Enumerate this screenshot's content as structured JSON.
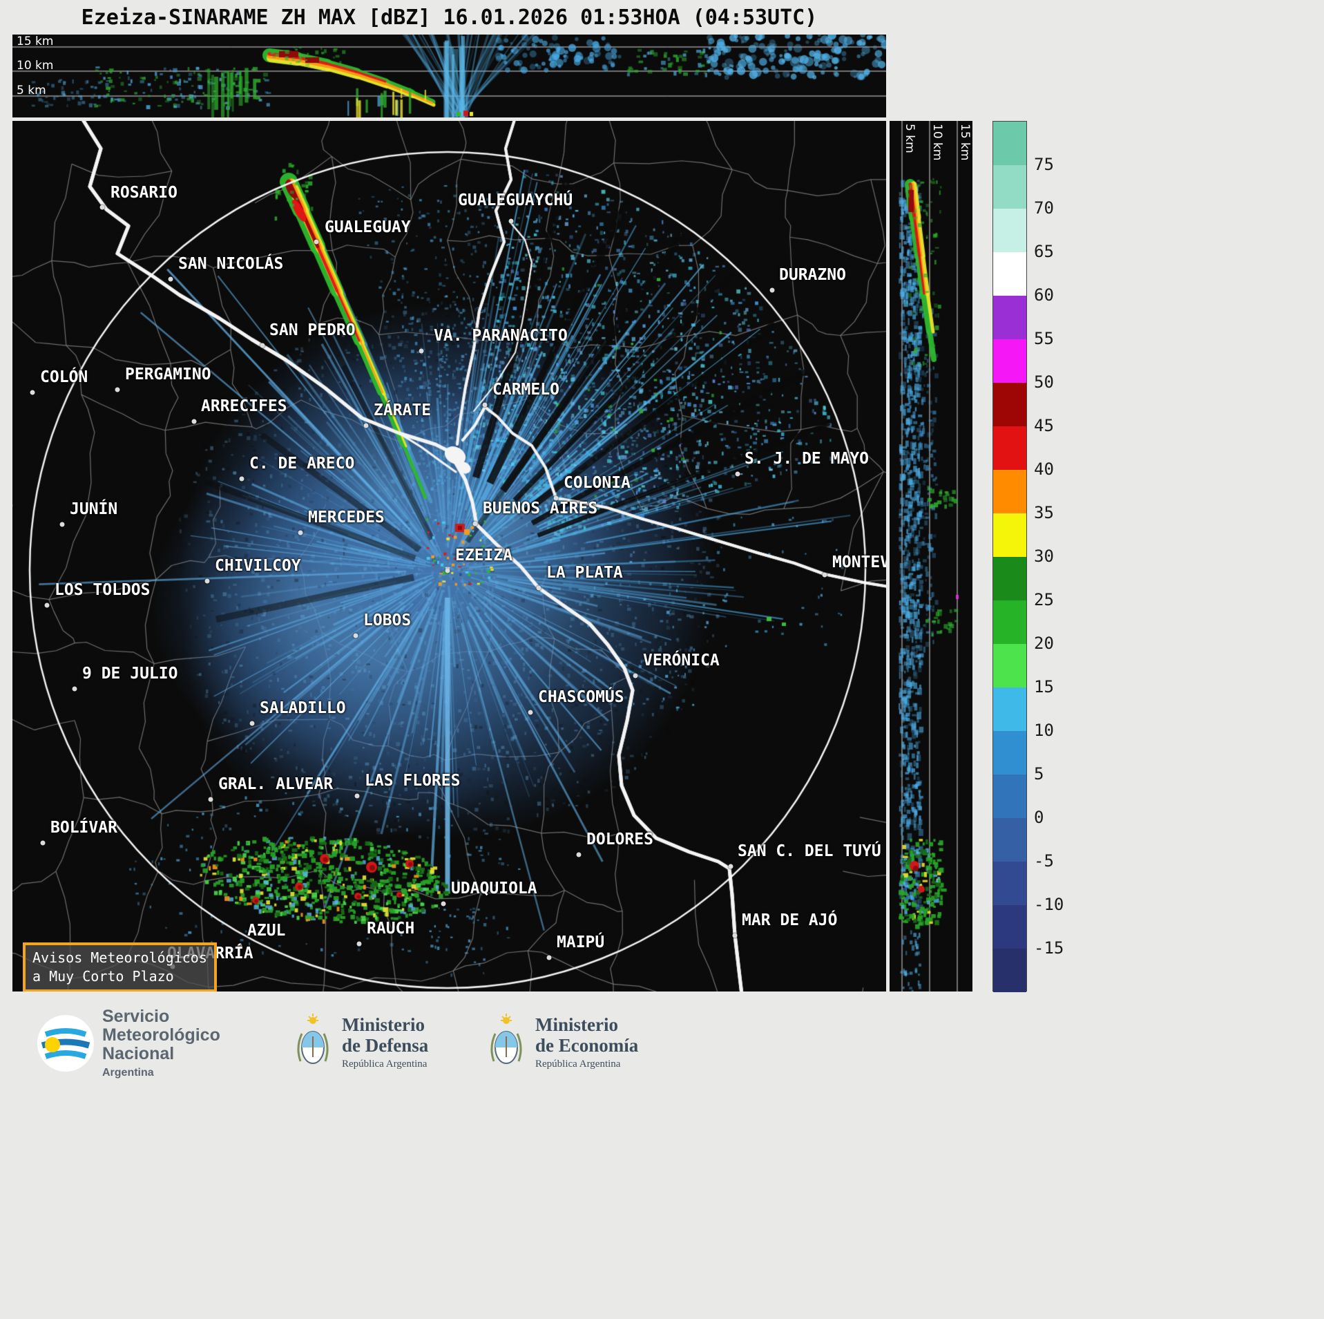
{
  "title": "Ezeiza-SINARAME ZH MAX [dBZ] 16.01.2026 01:53HOA (04:53UTC)",
  "top_panel": {
    "height_labels": [
      "15 km",
      "10 km",
      "5 km"
    ]
  },
  "right_panel": {
    "height_labels": [
      "5 km",
      "10 km",
      "15 km"
    ]
  },
  "colorbar": {
    "ticks": [
      "75",
      "70",
      "65",
      "60",
      "55",
      "50",
      "45",
      "40",
      "35",
      "30",
      "25",
      "20",
      "15",
      "10",
      "5",
      "0",
      "-5",
      "-10",
      "-15"
    ],
    "value_range": [
      -20,
      80
    ],
    "segments": [
      "#6cc9a9",
      "#92dcc6",
      "#c6efe5",
      "#ffffff",
      "#9b2fd6",
      "#f517f5",
      "#9e0606",
      "#e31212",
      "#ff8c00",
      "#f5f50a",
      "#1a8a1a",
      "#27b327",
      "#4ce34c",
      "#3fb9e8",
      "#2f8fd0",
      "#3274ba",
      "#3560a5",
      "#314a91",
      "#2c397e",
      "#27306b"
    ],
    "units": "dBZ"
  },
  "cities": [
    {
      "name": "ROSARIO",
      "dot": [
        130,
        125
      ],
      "label": [
        142,
        93
      ]
    },
    {
      "name": "GUALEGUAYCHÚ",
      "dot": [
        722,
        145
      ],
      "label": [
        645,
        104
      ]
    },
    {
      "name": "GUALEGUAY",
      "dot": [
        440,
        175
      ],
      "label": [
        452,
        143
      ]
    },
    {
      "name": "SAN NICOLÁS",
      "dot": [
        229,
        229
      ],
      "label": [
        240,
        196
      ]
    },
    {
      "name": "DURAZNO",
      "dot": [
        1100,
        245
      ],
      "label": [
        1110,
        212
      ]
    },
    {
      "name": "SAN PEDRO",
      "dot": [
        362,
        325
      ],
      "label": [
        372,
        292
      ]
    },
    {
      "name": "VA. PARANACITO",
      "dot": [
        592,
        333
      ],
      "label": [
        610,
        300
      ]
    },
    {
      "name": "COLÓN",
      "dot": [
        29,
        393
      ],
      "label": [
        40,
        360
      ]
    },
    {
      "name": "PERGAMINO",
      "dot": [
        152,
        389
      ],
      "label": [
        163,
        356
      ]
    },
    {
      "name": "ARRECIFES",
      "dot": [
        263,
        435
      ],
      "label": [
        273,
        402
      ]
    },
    {
      "name": "ZÁRATE",
      "dot": [
        512,
        441
      ],
      "label": [
        523,
        408
      ]
    },
    {
      "name": "CARMELO",
      "dot": [
        684,
        411
      ],
      "label": [
        695,
        378
      ]
    },
    {
      "name": "S. J. DE MAYO",
      "dot": [
        1050,
        511
      ],
      "label": [
        1060,
        478
      ]
    },
    {
      "name": "C. DE ARECO",
      "dot": [
        332,
        518
      ],
      "label": [
        343,
        485
      ]
    },
    {
      "name": "COLONIA",
      "dot": [
        787,
        546
      ],
      "label": [
        798,
        513
      ]
    },
    {
      "name": "JUNÍN",
      "dot": [
        72,
        584
      ],
      "label": [
        83,
        551
      ]
    },
    {
      "name": "MERCEDES",
      "dot": [
        417,
        596
      ],
      "label": [
        428,
        563
      ]
    },
    {
      "name": "BUENOS AIRES",
      "dot": [
        670,
        583
      ],
      "label": [
        681,
        550
      ]
    },
    {
      "name": "EZEIZA",
      "dot": [
        630,
        651
      ],
      "label": [
        641,
        618
      ]
    },
    {
      "name": "CHIVILCOY",
      "dot": [
        282,
        666
      ],
      "label": [
        293,
        633
      ]
    },
    {
      "name": "LA PLATA",
      "dot": [
        762,
        676
      ],
      "label": [
        773,
        643
      ]
    },
    {
      "name": "MONTEVIDEO",
      "dot": [
        1176,
        657
      ],
      "label": [
        1187,
        628
      ]
    },
    {
      "name": "LOS TOLDOS",
      "dot": [
        50,
        701
      ],
      "label": [
        61,
        668
      ]
    },
    {
      "name": "LOBOS",
      "dot": [
        497,
        745
      ],
      "label": [
        508,
        712
      ]
    },
    {
      "name": "VERÓNICA",
      "dot": [
        902,
        803
      ],
      "label": [
        913,
        770
      ]
    },
    {
      "name": "9 DE JULIO",
      "dot": [
        90,
        822
      ],
      "label": [
        101,
        789
      ]
    },
    {
      "name": "CHASCOMÚS",
      "dot": [
        750,
        856
      ],
      "label": [
        761,
        823
      ]
    },
    {
      "name": "SALADILLO",
      "dot": [
        347,
        872
      ],
      "label": [
        358,
        839
      ]
    },
    {
      "name": "GRAL. ALVEAR",
      "dot": [
        287,
        982
      ],
      "label": [
        298,
        949
      ]
    },
    {
      "name": "LAS FLORES",
      "dot": [
        499,
        977
      ],
      "label": [
        510,
        944
      ]
    },
    {
      "name": "BOLÍVAR",
      "dot": [
        44,
        1045
      ],
      "label": [
        55,
        1012
      ]
    },
    {
      "name": "DOLORES",
      "dot": [
        820,
        1062
      ],
      "label": [
        831,
        1029
      ]
    },
    {
      "name": "SAN C. DEL TUYÚ",
      "dot": [
        1040,
        1079
      ],
      "label": [
        1050,
        1046
      ]
    },
    {
      "name": "UDAQUIOLA",
      "dot": [
        624,
        1133
      ],
      "label": [
        635,
        1100
      ]
    },
    {
      "name": "MAR DE AJÓ",
      "dot": [
        1046,
        1179
      ],
      "label": [
        1056,
        1146
      ]
    },
    {
      "name": "AZUL",
      "dot": [
        329,
        1194
      ],
      "label": [
        340,
        1161
      ]
    },
    {
      "name": "RAUCH",
      "dot": [
        502,
        1191
      ],
      "label": [
        513,
        1158
      ]
    },
    {
      "name": "MAIPÚ",
      "dot": [
        777,
        1211
      ],
      "label": [
        788,
        1178
      ]
    },
    {
      "name": "OLAVARRÍA",
      "dot": [
        232,
        1224
      ],
      "label": [
        224,
        1194
      ]
    }
  ],
  "alert_box": {
    "line1": "Avisos Meteorológicos",
    "line2": "a Muy Corto Plazo"
  },
  "footer": {
    "smn": {
      "name_lines": [
        "Servicio",
        "Meteorológico",
        "Nacional"
      ],
      "country": "Argentina"
    },
    "ministries": [
      {
        "lines": [
          "Ministerio",
          "de Defensa"
        ],
        "sub": "República Argentina"
      },
      {
        "lines": [
          "Ministerio",
          "de Economía"
        ],
        "sub": "República Argentina"
      }
    ]
  }
}
